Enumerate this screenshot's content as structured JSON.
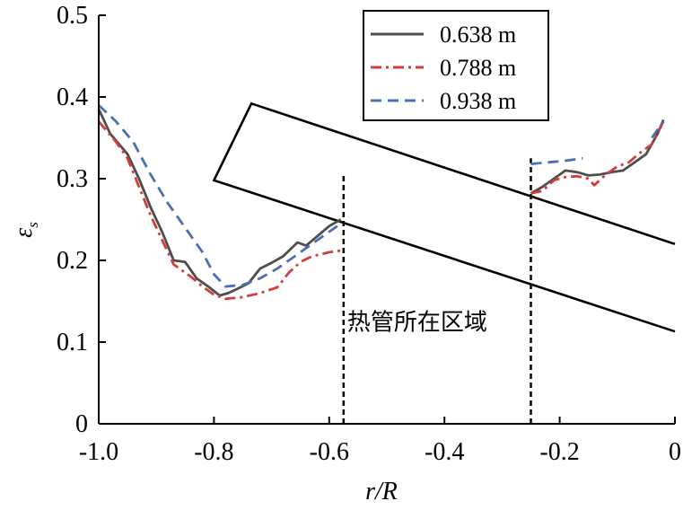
{
  "chart_data": {
    "type": "line",
    "title": "",
    "xlabel": "r/R",
    "ylabel_main": "ε",
    "ylabel_sub": "s",
    "xlim": [
      -1.0,
      0
    ],
    "ylim": [
      0,
      0.5
    ],
    "x_ticks": [
      -1.0,
      -0.8,
      -0.6,
      -0.4,
      -0.2,
      0
    ],
    "x_tick_labels": [
      "-1.0",
      "-0.8",
      "-0.6",
      "-0.4",
      "-0.2",
      "0"
    ],
    "y_ticks": [
      0,
      0.1,
      0.2,
      0.3,
      0.4,
      0.5
    ],
    "y_tick_labels": [
      "0",
      "0.1",
      "0.2",
      "0.3",
      "0.4",
      "0.5"
    ],
    "grid": false,
    "legend_position": "top-right",
    "series": [
      {
        "name": "0.638 m",
        "color": "#4d4d4d",
        "dash": "solid",
        "segments": [
          [
            [
              -1.0,
              0.385
            ],
            [
              -0.98,
              0.355
            ],
            [
              -0.95,
              0.33
            ],
            [
              -0.93,
              0.3
            ],
            [
              -0.91,
              0.265
            ],
            [
              -0.89,
              0.235
            ],
            [
              -0.87,
              0.2
            ],
            [
              -0.85,
              0.198
            ],
            [
              -0.84,
              0.188
            ],
            [
              -0.83,
              0.178
            ],
            [
              -0.81,
              0.168
            ],
            [
              -0.79,
              0.157
            ],
            [
              -0.775,
              0.16
            ],
            [
              -0.76,
              0.165
            ],
            [
              -0.74,
              0.172
            ],
            [
              -0.72,
              0.19
            ],
            [
              -0.7,
              0.197
            ],
            [
              -0.68,
              0.205
            ],
            [
              -0.655,
              0.222
            ],
            [
              -0.64,
              0.218
            ],
            [
              -0.62,
              0.23
            ],
            [
              -0.6,
              0.242
            ],
            [
              -0.58,
              0.25
            ]
          ],
          [
            [
              -0.25,
              0.282
            ],
            [
              -0.23,
              0.29
            ],
            [
              -0.21,
              0.3
            ],
            [
              -0.19,
              0.31
            ],
            [
              -0.17,
              0.308
            ],
            [
              -0.15,
              0.304
            ],
            [
              -0.13,
              0.305
            ],
            [
              -0.11,
              0.308
            ],
            [
              -0.09,
              0.31
            ],
            [
              -0.07,
              0.32
            ],
            [
              -0.05,
              0.33
            ],
            [
              -0.03,
              0.355
            ],
            [
              -0.02,
              0.372
            ]
          ]
        ]
      },
      {
        "name": "0.788 m",
        "color": "#d43c3c",
        "dash": "dashdot",
        "segments": [
          [
            [
              -1.0,
              0.37
            ],
            [
              -0.97,
              0.345
            ],
            [
              -0.95,
              0.325
            ],
            [
              -0.93,
              0.29
            ],
            [
              -0.91,
              0.255
            ],
            [
              -0.89,
              0.225
            ],
            [
              -0.87,
              0.195
            ],
            [
              -0.84,
              0.18
            ],
            [
              -0.82,
              0.168
            ],
            [
              -0.8,
              0.158
            ],
            [
              -0.78,
              0.153
            ],
            [
              -0.75,
              0.155
            ],
            [
              -0.72,
              0.16
            ],
            [
              -0.69,
              0.167
            ],
            [
              -0.67,
              0.185
            ],
            [
              -0.65,
              0.198
            ],
            [
              -0.63,
              0.205
            ],
            [
              -0.6,
              0.21
            ],
            [
              -0.58,
              0.212
            ]
          ],
          [
            [
              -0.25,
              0.282
            ],
            [
              -0.23,
              0.285
            ],
            [
              -0.21,
              0.298
            ],
            [
              -0.19,
              0.302
            ],
            [
              -0.17,
              0.303
            ],
            [
              -0.15,
              0.3
            ],
            [
              -0.14,
              0.292
            ],
            [
              -0.12,
              0.305
            ],
            [
              -0.1,
              0.315
            ],
            [
              -0.08,
              0.32
            ],
            [
              -0.06,
              0.332
            ],
            [
              -0.04,
              0.342
            ],
            [
              -0.02,
              0.37
            ]
          ]
        ]
      },
      {
        "name": "0.938 m",
        "color": "#4a6fb4",
        "dash": "dashed",
        "segments": [
          [
            [
              -1.0,
              0.39
            ],
            [
              -0.97,
              0.37
            ],
            [
              -0.94,
              0.345
            ],
            [
              -0.91,
              0.305
            ],
            [
              -0.88,
              0.27
            ],
            [
              -0.85,
              0.24
            ],
            [
              -0.82,
              0.21
            ],
            [
              -0.8,
              0.183
            ],
            [
              -0.78,
              0.168
            ],
            [
              -0.75,
              0.17
            ],
            [
              -0.72,
              0.178
            ],
            [
              -0.69,
              0.19
            ],
            [
              -0.66,
              0.205
            ],
            [
              -0.63,
              0.22
            ],
            [
              -0.6,
              0.235
            ],
            [
              -0.58,
              0.245
            ]
          ],
          [
            [
              -0.25,
              0.318
            ],
            [
              -0.22,
              0.32
            ],
            [
              -0.19,
              0.322
            ],
            [
              -0.16,
              0.325
            ]
          ],
          [
            [
              -0.04,
              0.35
            ],
            [
              -0.02,
              0.37
            ]
          ]
        ]
      }
    ],
    "annotations": {
      "region_label": "热管所在区域",
      "region_bounds": [
        -0.575,
        -0.25
      ],
      "region_label_anchor": [
        -0.575,
        0.115
      ],
      "heat_pipe_outline": {
        "corners": [
          [
            -0.8,
            0.298
          ],
          [
            -0.735,
            0.392
          ]
        ],
        "upper_end": [
          0,
          0.22
        ],
        "lower_end": [
          0,
          0.113
        ]
      }
    }
  }
}
